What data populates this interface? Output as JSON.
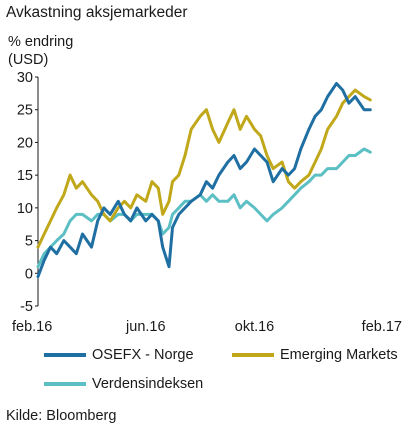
{
  "chart_data": {
    "type": "line",
    "title": "Avkastning aksjemarkeder",
    "ylabel": "% endring\n(USD)",
    "xlabel": "",
    "x_tick_labels": [
      "feb.16",
      "jun.16",
      "okt.16",
      "feb.17"
    ],
    "x_range": [
      "2016-02",
      "2017-02"
    ],
    "ylim": [
      -5,
      30
    ],
    "y_ticks": [
      -5,
      0,
      5,
      10,
      15,
      20,
      25,
      30
    ],
    "grid": false,
    "legend_position": "bottom",
    "series": [
      {
        "name": "OSEFX - Norge",
        "color": "#1f6fa3",
        "points": [
          [
            "2016-02-01",
            -0.5
          ],
          [
            "2016-02-08",
            2
          ],
          [
            "2016-02-15",
            4
          ],
          [
            "2016-02-22",
            3
          ],
          [
            "2016-03-01",
            5
          ],
          [
            "2016-03-08",
            4
          ],
          [
            "2016-03-15",
            3
          ],
          [
            "2016-03-22",
            6
          ],
          [
            "2016-04-01",
            4
          ],
          [
            "2016-04-08",
            8
          ],
          [
            "2016-04-15",
            10
          ],
          [
            "2016-04-22",
            9
          ],
          [
            "2016-05-01",
            11
          ],
          [
            "2016-05-08",
            9
          ],
          [
            "2016-05-15",
            8
          ],
          [
            "2016-05-22",
            10
          ],
          [
            "2016-06-01",
            8
          ],
          [
            "2016-06-08",
            9
          ],
          [
            "2016-06-15",
            8
          ],
          [
            "2016-06-20",
            4
          ],
          [
            "2016-06-27",
            1
          ],
          [
            "2016-07-01",
            7
          ],
          [
            "2016-07-08",
            9
          ],
          [
            "2016-07-15",
            10
          ],
          [
            "2016-07-22",
            11
          ],
          [
            "2016-08-01",
            12
          ],
          [
            "2016-08-08",
            14
          ],
          [
            "2016-08-15",
            13
          ],
          [
            "2016-08-22",
            15
          ],
          [
            "2016-09-01",
            17
          ],
          [
            "2016-09-08",
            18
          ],
          [
            "2016-09-15",
            16
          ],
          [
            "2016-09-22",
            17
          ],
          [
            "2016-10-01",
            19
          ],
          [
            "2016-10-08",
            18
          ],
          [
            "2016-10-15",
            17
          ],
          [
            "2016-10-22",
            14
          ],
          [
            "2016-11-01",
            16
          ],
          [
            "2016-11-08",
            15
          ],
          [
            "2016-11-15",
            16
          ],
          [
            "2016-11-22",
            19
          ],
          [
            "2016-12-01",
            22
          ],
          [
            "2016-12-08",
            24
          ],
          [
            "2016-12-15",
            25
          ],
          [
            "2016-12-22",
            27
          ],
          [
            "2017-01-01",
            29
          ],
          [
            "2017-01-08",
            28
          ],
          [
            "2017-01-15",
            26
          ],
          [
            "2017-01-22",
            27
          ],
          [
            "2017-02-01",
            25
          ],
          [
            "2017-02-08",
            25
          ]
        ]
      },
      {
        "name": "Emerging Markets",
        "color": "#c0a81a",
        "points": [
          [
            "2016-02-01",
            4
          ],
          [
            "2016-02-08",
            6
          ],
          [
            "2016-02-15",
            8
          ],
          [
            "2016-02-22",
            10
          ],
          [
            "2016-03-01",
            12
          ],
          [
            "2016-03-08",
            15
          ],
          [
            "2016-03-15",
            13
          ],
          [
            "2016-03-22",
            14
          ],
          [
            "2016-04-01",
            12
          ],
          [
            "2016-04-08",
            11
          ],
          [
            "2016-04-15",
            9
          ],
          [
            "2016-04-22",
            8
          ],
          [
            "2016-05-01",
            10
          ],
          [
            "2016-05-08",
            11
          ],
          [
            "2016-05-15",
            10
          ],
          [
            "2016-05-22",
            12
          ],
          [
            "2016-06-01",
            11
          ],
          [
            "2016-06-08",
            14
          ],
          [
            "2016-06-15",
            13
          ],
          [
            "2016-06-20",
            9
          ],
          [
            "2016-06-27",
            11
          ],
          [
            "2016-07-01",
            14
          ],
          [
            "2016-07-08",
            15
          ],
          [
            "2016-07-15",
            18
          ],
          [
            "2016-07-22",
            22
          ],
          [
            "2016-08-01",
            24
          ],
          [
            "2016-08-08",
            25
          ],
          [
            "2016-08-15",
            22
          ],
          [
            "2016-08-22",
            20
          ],
          [
            "2016-09-01",
            23
          ],
          [
            "2016-09-08",
            25
          ],
          [
            "2016-09-15",
            22
          ],
          [
            "2016-09-22",
            24
          ],
          [
            "2016-10-01",
            22
          ],
          [
            "2016-10-08",
            21
          ],
          [
            "2016-10-15",
            18
          ],
          [
            "2016-10-22",
            16
          ],
          [
            "2016-11-01",
            17
          ],
          [
            "2016-11-08",
            14
          ],
          [
            "2016-11-15",
            13
          ],
          [
            "2016-11-22",
            14
          ],
          [
            "2016-12-01",
            15
          ],
          [
            "2016-12-08",
            17
          ],
          [
            "2016-12-15",
            19
          ],
          [
            "2016-12-22",
            22
          ],
          [
            "2017-01-01",
            24
          ],
          [
            "2017-01-08",
            26
          ],
          [
            "2017-01-15",
            27
          ],
          [
            "2017-01-22",
            28
          ],
          [
            "2017-02-01",
            27
          ],
          [
            "2017-02-08",
            26.5
          ]
        ]
      },
      {
        "name": "Verdensindeksen",
        "color": "#5bbfc4",
        "points": [
          [
            "2016-02-01",
            1
          ],
          [
            "2016-02-08",
            3
          ],
          [
            "2016-02-15",
            4
          ],
          [
            "2016-02-22",
            5
          ],
          [
            "2016-03-01",
            6
          ],
          [
            "2016-03-08",
            8
          ],
          [
            "2016-03-15",
            9
          ],
          [
            "2016-03-22",
            9
          ],
          [
            "2016-04-01",
            8
          ],
          [
            "2016-04-08",
            9
          ],
          [
            "2016-04-15",
            9
          ],
          [
            "2016-04-22",
            8
          ],
          [
            "2016-05-01",
            9
          ],
          [
            "2016-05-08",
            9
          ],
          [
            "2016-05-15",
            8
          ],
          [
            "2016-05-22",
            9
          ],
          [
            "2016-06-01",
            9
          ],
          [
            "2016-06-08",
            9
          ],
          [
            "2016-06-15",
            8
          ],
          [
            "2016-06-20",
            6
          ],
          [
            "2016-06-27",
            7
          ],
          [
            "2016-07-01",
            9
          ],
          [
            "2016-07-08",
            10
          ],
          [
            "2016-07-15",
            11
          ],
          [
            "2016-07-22",
            11
          ],
          [
            "2016-08-01",
            12
          ],
          [
            "2016-08-08",
            11
          ],
          [
            "2016-08-15",
            12
          ],
          [
            "2016-08-22",
            11
          ],
          [
            "2016-09-01",
            11
          ],
          [
            "2016-09-08",
            12
          ],
          [
            "2016-09-15",
            10
          ],
          [
            "2016-09-22",
            11
          ],
          [
            "2016-10-01",
            10
          ],
          [
            "2016-10-08",
            9
          ],
          [
            "2016-10-15",
            8
          ],
          [
            "2016-10-22",
            9
          ],
          [
            "2016-11-01",
            10
          ],
          [
            "2016-11-08",
            11
          ],
          [
            "2016-11-15",
            12
          ],
          [
            "2016-11-22",
            13
          ],
          [
            "2016-12-01",
            14
          ],
          [
            "2016-12-08",
            15
          ],
          [
            "2016-12-15",
            15
          ],
          [
            "2016-12-22",
            16
          ],
          [
            "2017-01-01",
            16
          ],
          [
            "2017-01-08",
            17
          ],
          [
            "2017-01-15",
            18
          ],
          [
            "2017-01-22",
            18
          ],
          [
            "2017-02-01",
            19
          ],
          [
            "2017-02-08",
            18.5
          ]
        ]
      }
    ]
  },
  "source_text": "Kilde: Bloomberg"
}
